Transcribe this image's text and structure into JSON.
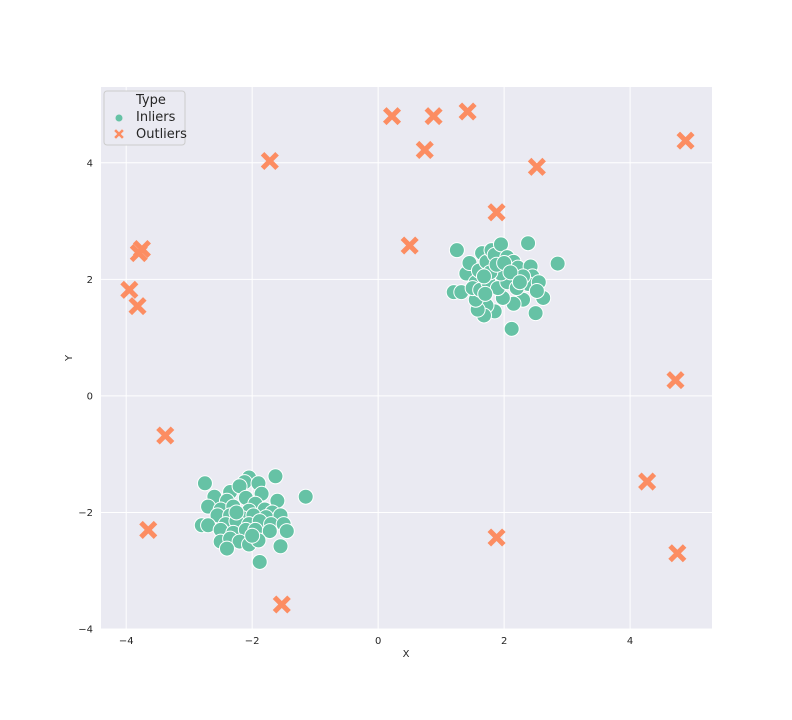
{
  "chart_data": {
    "type": "scatter",
    "title": "",
    "xlabel": "X",
    "ylabel": "Y",
    "xlim": [
      -4.4,
      5.3
    ],
    "ylim": [
      -4.0,
      5.3
    ],
    "xticks": [
      -4,
      -2,
      0,
      2,
      4
    ],
    "yticks": [
      -4,
      -2,
      0,
      2,
      4
    ],
    "xtick_labels": [
      "−4",
      "−2",
      "0",
      "2",
      "4"
    ],
    "ytick_labels": [
      "−4",
      "−2",
      "0",
      "2",
      "4"
    ],
    "grid": true,
    "legend": {
      "title": "Type",
      "placement": "top-left",
      "entries": [
        "Inliers",
        "Outliers"
      ]
    },
    "series": [
      {
        "name": "Inliers",
        "marker": "circle",
        "color": "#66c2a5",
        "points": [
          [
            -2.05,
            -1.4
          ],
          [
            -1.63,
            -1.38
          ],
          [
            -2.12,
            -1.48
          ],
          [
            -1.9,
            -1.5
          ],
          [
            -2.75,
            -1.5
          ],
          [
            -2.35,
            -1.65
          ],
          [
            -2.2,
            -1.55
          ],
          [
            -1.85,
            -1.68
          ],
          [
            -1.6,
            -1.8
          ],
          [
            -1.15,
            -1.73
          ],
          [
            -2.6,
            -1.73
          ],
          [
            -2.4,
            -1.8
          ],
          [
            -2.1,
            -1.75
          ],
          [
            -1.95,
            -1.85
          ],
          [
            -2.7,
            -1.9
          ],
          [
            -2.5,
            -1.95
          ],
          [
            -2.3,
            -1.9
          ],
          [
            -2.05,
            -1.97
          ],
          [
            -1.8,
            -1.95
          ],
          [
            -1.68,
            -2.0
          ],
          [
            -2.55,
            -2.05
          ],
          [
            -2.35,
            -2.05
          ],
          [
            -2.15,
            -2.1
          ],
          [
            -1.98,
            -2.05
          ],
          [
            -1.78,
            -2.08
          ],
          [
            -1.55,
            -2.05
          ],
          [
            -2.8,
            -2.22
          ],
          [
            -2.7,
            -2.22
          ],
          [
            -2.42,
            -2.2
          ],
          [
            -2.25,
            -2.15
          ],
          [
            -2.05,
            -2.2
          ],
          [
            -1.88,
            -2.15
          ],
          [
            -1.7,
            -2.2
          ],
          [
            -1.5,
            -2.2
          ],
          [
            -2.5,
            -2.3
          ],
          [
            -2.3,
            -2.35
          ],
          [
            -2.1,
            -2.3
          ],
          [
            -1.95,
            -2.3
          ],
          [
            -1.72,
            -2.32
          ],
          [
            -1.45,
            -2.32
          ],
          [
            -2.5,
            -2.5
          ],
          [
            -2.35,
            -2.45
          ],
          [
            -2.2,
            -2.5
          ],
          [
            -2.05,
            -2.55
          ],
          [
            -1.9,
            -2.48
          ],
          [
            -1.55,
            -2.58
          ],
          [
            -2.4,
            -2.62
          ],
          [
            -1.88,
            -2.85
          ],
          [
            -2.25,
            -2.0
          ],
          [
            -2.0,
            -2.4
          ]
        ]
      },
      {
        "name": "Outliers",
        "marker": "x",
        "color": "#fc8d62",
        "points": [
          [
            0.22,
            4.8
          ],
          [
            0.88,
            4.8
          ],
          [
            1.42,
            4.88
          ],
          [
            0.74,
            4.22
          ],
          [
            2.52,
            3.93
          ],
          [
            4.88,
            4.38
          ],
          [
            -1.72,
            4.03
          ],
          [
            1.88,
            3.15
          ],
          [
            -3.75,
            2.52
          ],
          [
            -3.8,
            2.45
          ],
          [
            0.5,
            2.58
          ],
          [
            -3.95,
            1.82
          ],
          [
            -3.82,
            1.54
          ],
          [
            4.72,
            0.27
          ],
          [
            -3.38,
            -0.68
          ],
          [
            4.27,
            -1.47
          ],
          [
            -3.65,
            -2.3
          ],
          [
            1.88,
            -2.43
          ],
          [
            4.75,
            -2.7
          ],
          [
            -1.53,
            -3.58
          ]
        ]
      }
    ]
  },
  "extra_inlier_points": [
    [
      1.25,
      2.5
    ],
    [
      1.2,
      1.78
    ],
    [
      1.32,
      1.78
    ],
    [
      1.4,
      2.1
    ],
    [
      1.45,
      2.28
    ],
    [
      1.55,
      1.95
    ],
    [
      1.6,
      2.15
    ],
    [
      1.65,
      2.45
    ],
    [
      1.72,
      2.3
    ],
    [
      1.8,
      2.5
    ],
    [
      1.85,
      2.42
    ],
    [
      1.95,
      2.6
    ],
    [
      2.05,
      2.38
    ],
    [
      2.15,
      2.3
    ],
    [
      2.22,
      2.2
    ],
    [
      2.38,
      2.62
    ],
    [
      2.42,
      2.22
    ],
    [
      2.45,
      2.05
    ],
    [
      2.38,
      1.92
    ],
    [
      2.55,
      1.95
    ],
    [
      2.85,
      2.27
    ],
    [
      2.62,
      1.68
    ],
    [
      2.5,
      1.42
    ],
    [
      2.3,
      1.65
    ],
    [
      2.15,
      1.58
    ],
    [
      2.12,
      1.15
    ],
    [
      1.98,
      1.68
    ],
    [
      1.85,
      1.45
    ],
    [
      1.72,
      1.55
    ],
    [
      1.68,
      1.38
    ],
    [
      1.58,
      1.48
    ],
    [
      1.55,
      1.65
    ],
    [
      1.5,
      1.85
    ],
    [
      1.62,
      1.82
    ],
    [
      1.75,
      1.95
    ],
    [
      1.9,
      1.85
    ],
    [
      2.05,
      1.95
    ],
    [
      2.2,
      1.85
    ],
    [
      2.3,
      2.05
    ],
    [
      1.95,
      2.1
    ],
    [
      1.78,
      2.12
    ],
    [
      1.88,
      2.25
    ],
    [
      2.0,
      2.28
    ],
    [
      2.1,
      2.12
    ],
    [
      1.68,
      2.05
    ],
    [
      2.52,
      1.8
    ],
    [
      1.7,
      1.75
    ],
    [
      2.25,
      1.95
    ]
  ]
}
